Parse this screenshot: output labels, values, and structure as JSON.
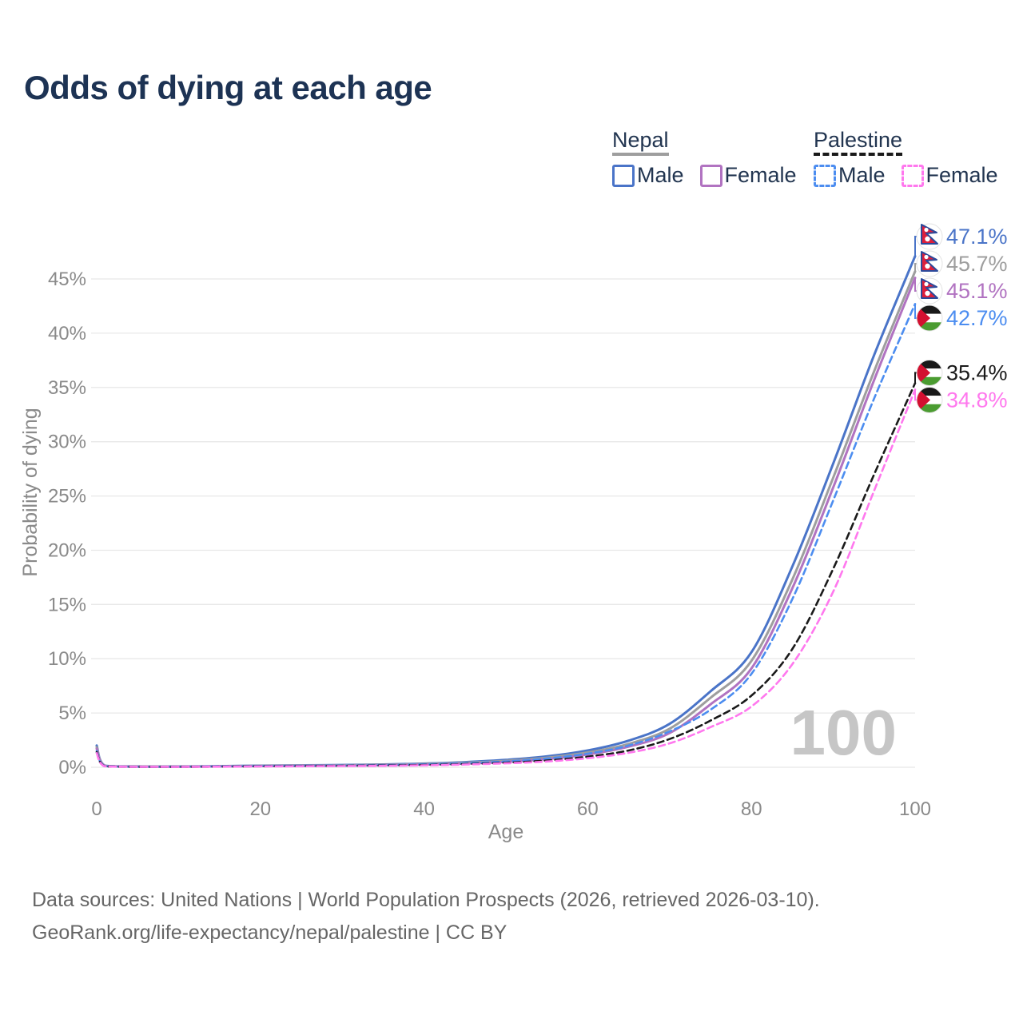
{
  "title": "Odds of dying at each age",
  "legend": {
    "nepal": {
      "name": "Nepal",
      "male": "Male",
      "female": "Female"
    },
    "palestine": {
      "name": "Palestine",
      "male": "Male",
      "female": "Female"
    }
  },
  "watermark": "100",
  "footer": {
    "line1": "Data sources: United Nations | World Population Prospects (2026, retrieved 2026-03-10).",
    "line2": "GeoRank.org/life-expectancy/nepal/palestine | CC BY"
  },
  "colors": {
    "nepal_male": "#4a74c8",
    "nepal_total": "#9e9e9e",
    "nepal_female": "#b173c1",
    "palestine_male": "#4c8df0",
    "palestine_total": "#1a1a1a",
    "palestine_female": "#ff78ee",
    "nepal_underline": "#9e9e9e",
    "palestine_underline": "#1a1a1a",
    "title_text": "#1d3354",
    "legend_text": "#223550",
    "axis_text": "#8a8a8a",
    "grid": "#e8e8e8",
    "watermark": "#c6c6c6",
    "footer_text": "#666666"
  },
  "chart_data": {
    "type": "line",
    "title": "Odds of dying at each age",
    "xlabel": "Age",
    "ylabel": "Probability of dying",
    "xlim": [
      0,
      100
    ],
    "ylim_pct": [
      0,
      48
    ],
    "x_ticks": [
      0,
      20,
      40,
      60,
      80,
      100
    ],
    "y_ticks_pct": [
      0,
      5,
      10,
      15,
      20,
      25,
      30,
      35,
      40,
      45
    ],
    "grid": "horizontal",
    "legend_position": "top-right",
    "ages": [
      0,
      1,
      5,
      10,
      15,
      20,
      25,
      30,
      35,
      40,
      45,
      50,
      55,
      60,
      65,
      70,
      75,
      80,
      85,
      90,
      95,
      100
    ],
    "series": [
      {
        "id": "nepal-male",
        "name": "Nepal Male",
        "flag": "nepal",
        "dash": false,
        "color": "#4a74c8",
        "end_label": "47.1%",
        "values_pct": [
          2.0,
          0.15,
          0.08,
          0.07,
          0.1,
          0.15,
          0.18,
          0.21,
          0.26,
          0.34,
          0.47,
          0.68,
          1.0,
          1.55,
          2.45,
          4.0,
          7.0,
          10.6,
          18.5,
          28.0,
          38.0,
          47.1
        ]
      },
      {
        "id": "nepal-total",
        "name": "Nepal Total",
        "flag": "nepal",
        "dash": false,
        "color": "#9e9e9e",
        "end_label": "45.7%",
        "values_pct": [
          1.85,
          0.14,
          0.07,
          0.06,
          0.09,
          0.13,
          0.16,
          0.18,
          0.23,
          0.3,
          0.41,
          0.59,
          0.88,
          1.36,
          2.15,
          3.55,
          6.4,
          9.8,
          17.3,
          26.7,
          36.5,
          45.7
        ]
      },
      {
        "id": "nepal-female",
        "name": "Nepal Female",
        "flag": "nepal",
        "dash": false,
        "color": "#b173c1",
        "end_label": "45.1%",
        "values_pct": [
          1.7,
          0.12,
          0.06,
          0.05,
          0.08,
          0.11,
          0.13,
          0.15,
          0.19,
          0.25,
          0.34,
          0.5,
          0.75,
          1.18,
          1.9,
          3.15,
          5.8,
          9.1,
          16.5,
          25.8,
          35.7,
          45.1
        ]
      },
      {
        "id": "palestine-male",
        "name": "Palestine Male",
        "flag": "palestine",
        "dash": true,
        "color": "#4c8df0",
        "end_label": "42.7%",
        "values_pct": [
          1.5,
          0.1,
          0.05,
          0.05,
          0.08,
          0.12,
          0.14,
          0.16,
          0.2,
          0.27,
          0.37,
          0.54,
          0.8,
          1.25,
          2.0,
          3.3,
          5.3,
          8.6,
          15.5,
          24.6,
          34.0,
          42.7
        ]
      },
      {
        "id": "palestine-total",
        "name": "Palestine Total",
        "flag": "palestine",
        "dash": true,
        "color": "#1a1a1a",
        "end_label": "35.4%",
        "values_pct": [
          1.4,
          0.09,
          0.04,
          0.04,
          0.06,
          0.09,
          0.11,
          0.13,
          0.16,
          0.21,
          0.29,
          0.42,
          0.62,
          0.97,
          1.55,
          2.6,
          4.3,
          6.6,
          10.9,
          18.3,
          27.0,
          35.4
        ]
      },
      {
        "id": "palestine-female",
        "name": "Palestine Female",
        "flag": "palestine",
        "dash": true,
        "color": "#ff78ee",
        "end_label": "34.8%",
        "values_pct": [
          1.3,
          0.08,
          0.04,
          0.03,
          0.05,
          0.07,
          0.09,
          0.11,
          0.13,
          0.18,
          0.25,
          0.36,
          0.53,
          0.83,
          1.33,
          2.2,
          3.7,
          5.6,
          9.5,
          16.2,
          25.5,
          34.8
        ]
      }
    ]
  }
}
